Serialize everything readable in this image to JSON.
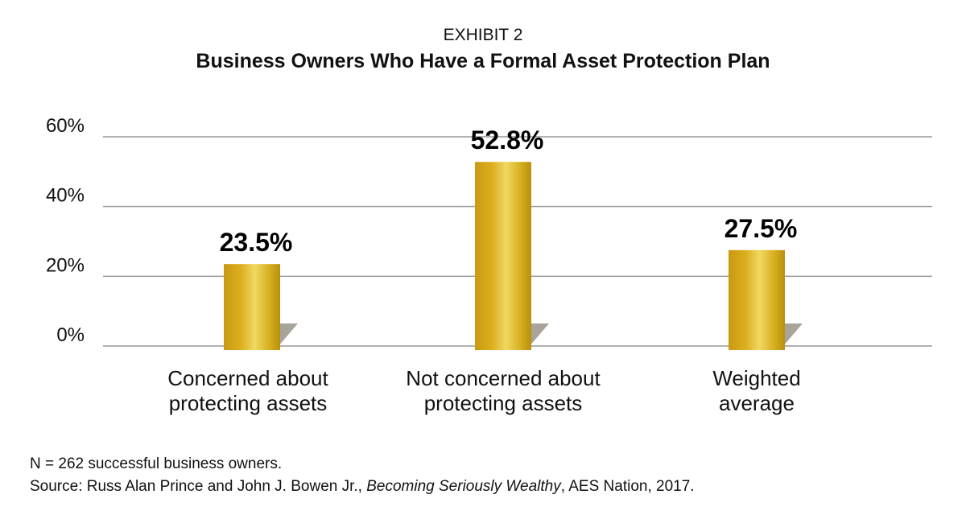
{
  "chart_data": {
    "type": "bar",
    "supertitle": "EXHIBIT 2",
    "title": "Business Owners Who Have a Formal Asset Protection Plan",
    "categories": [
      "Concerned about protecting assets",
      "Not concerned about protecting assets",
      "Weighted average"
    ],
    "category_lines": [
      [
        "Concerned about",
        "protecting assets"
      ],
      [
        "Not concerned about",
        "protecting assets"
      ],
      [
        "Weighted",
        "average"
      ]
    ],
    "values": [
      23.5,
      52.8,
      27.5
    ],
    "data_labels": [
      "23.5%",
      "52.8%",
      "27.5%"
    ],
    "yticks": [
      "0%",
      "20%",
      "40%",
      "60%"
    ],
    "ytick_values": [
      0,
      20,
      40,
      60
    ],
    "ylim": [
      0,
      60
    ],
    "grid": true,
    "xlabel": "",
    "ylabel": "",
    "bar_color": "#d9b41c"
  },
  "notes": {
    "n": "N = 262 successful business owners.",
    "source_prefix": "Source: Russ Alan Prince and John J. Bowen Jr., ",
    "source_title": "Becoming Seriously Wealthy",
    "source_suffix": ", AES Nation, 2017."
  }
}
